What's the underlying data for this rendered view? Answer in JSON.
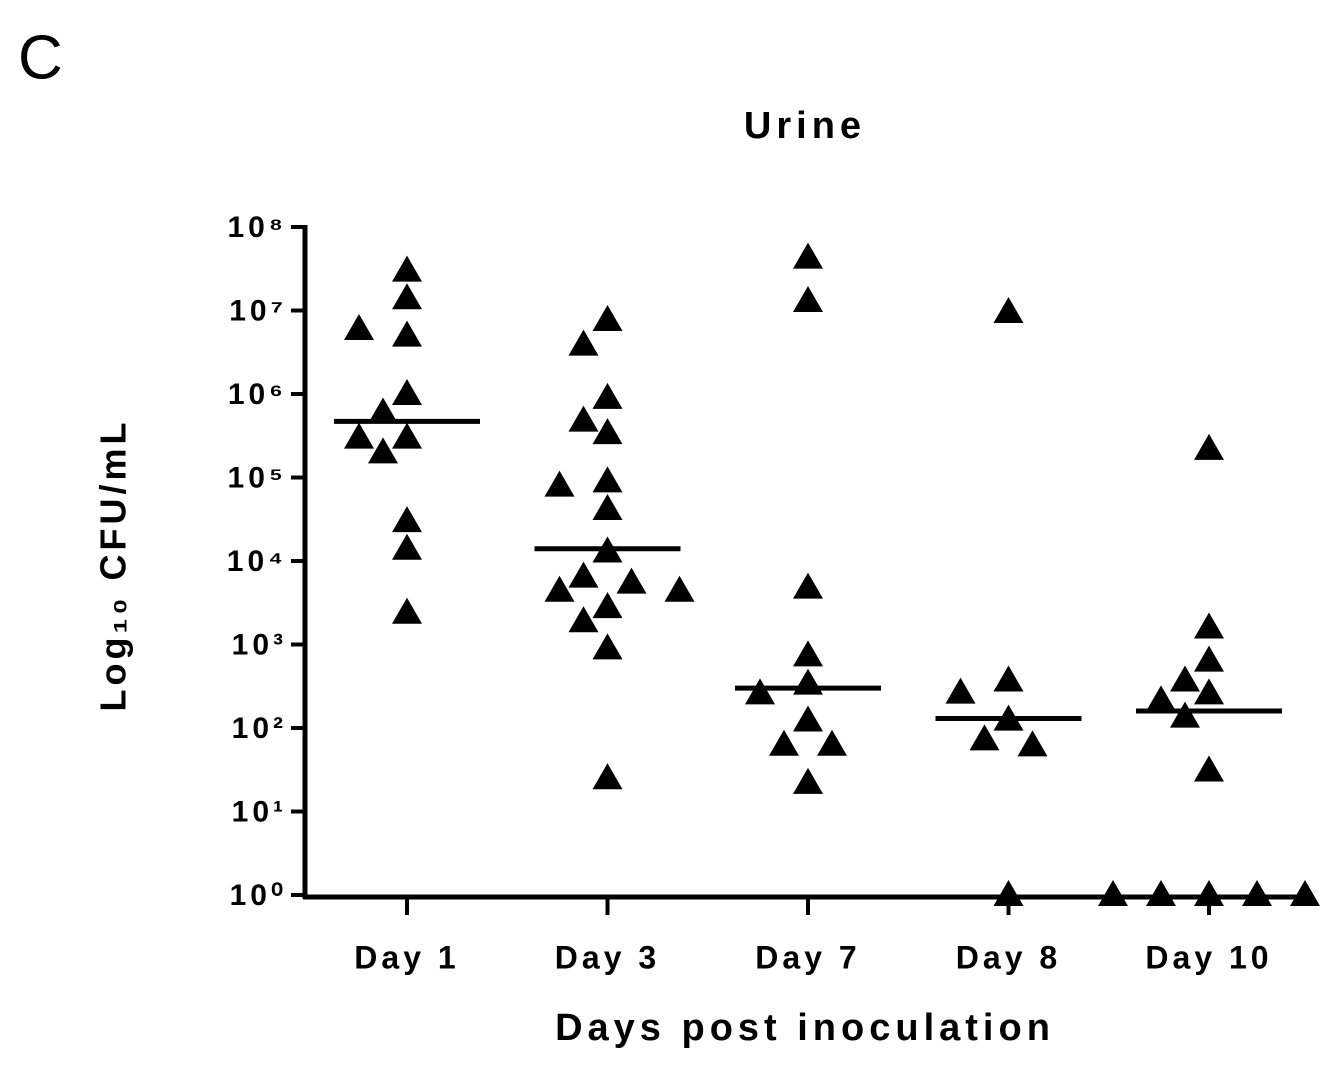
{
  "panel_label": "C",
  "chart_data": {
    "type": "dot",
    "title": "Urine",
    "x_label": "Days post inoculation",
    "y_label": "Log₁₀ CFU/mL",
    "log_scale": true,
    "color": "#000000",
    "categories": [
      "Day 1",
      "Day 3",
      "Day 7",
      "Day 8",
      "Day 10"
    ],
    "values": [
      [
        30000000,
        14000000,
        5000000,
        6000000,
        1000000,
        600000,
        300000,
        300000,
        200000,
        30000,
        14000,
        2400
      ],
      [
        7700000,
        3900000,
        900000,
        480000,
        340000,
        90000,
        80000,
        42000,
        13000,
        6500,
        5500,
        4400,
        4400,
        2800,
        1900,
        900,
        25
      ],
      [
        43000000,
        13000000,
        4800,
        740,
        340,
        260,
        123,
        63,
        63,
        22
      ],
      [
        9600000,
        370,
        265,
        126,
        73,
        62,
        1
      ],
      [
        220000,
        1600,
        640,
        370,
        260,
        214,
        137,
        31,
        1,
        1,
        1,
        1,
        1
      ]
    ],
    "medians": [
      470000,
      14000,
      300,
      130,
      160
    ],
    "ylim": [
      1,
      100000000
    ],
    "yticks": [
      {
        "value": 1,
        "label": "10⁰"
      },
      {
        "value": 10,
        "label": "10¹"
      },
      {
        "value": 100,
        "label": "10²"
      },
      {
        "value": 1000,
        "label": "10³"
      },
      {
        "value": 10000,
        "label": "10⁴"
      },
      {
        "value": 100000,
        "label": "10⁵"
      },
      {
        "value": 1000000,
        "label": "10⁶"
      },
      {
        "value": 10000000,
        "label": "10⁷"
      },
      {
        "value": 100000000,
        "label": "10⁸"
      }
    ]
  }
}
